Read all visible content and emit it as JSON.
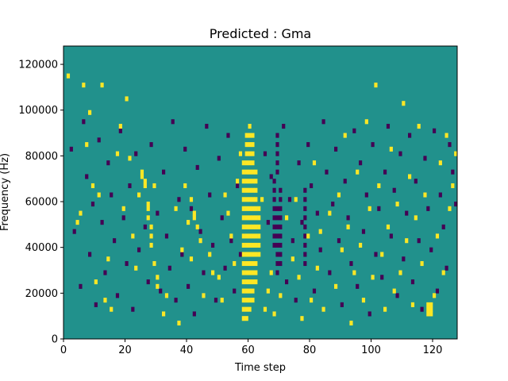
{
  "chart_data": {
    "type": "heatmap",
    "title": "Predicted : Gma",
    "xlabel": "Time step",
    "ylabel": "Frequency (Hz)",
    "xlim": [
      0,
      128
    ],
    "ylim": [
      0,
      128000
    ],
    "x_ticks": [
      0,
      20,
      40,
      60,
      80,
      100,
      120
    ],
    "y_ticks": [
      0,
      20000,
      40000,
      60000,
      80000,
      100000,
      120000
    ],
    "n_time_steps": 128,
    "n_freq_bins": 64,
    "colors": {
      "background": "#21918c",
      "high": "#fde725",
      "low": "#440154"
    },
    "yellow_cells": [
      [
        1,
        57
      ],
      [
        4,
        25
      ],
      [
        5,
        27
      ],
      [
        6,
        55
      ],
      [
        7,
        42
      ],
      [
        8,
        49
      ],
      [
        9,
        33
      ],
      [
        10,
        12
      ],
      [
        11,
        31
      ],
      [
        12,
        55
      ],
      [
        13,
        8
      ],
      [
        14,
        17
      ],
      [
        15,
        6
      ],
      [
        17,
        40
      ],
      [
        18,
        46
      ],
      [
        19,
        28
      ],
      [
        20,
        52
      ],
      [
        21,
        39
      ],
      [
        22,
        22
      ],
      [
        23,
        15
      ],
      [
        24,
        31
      ],
      [
        25,
        35
      ],
      [
        25,
        36
      ],
      [
        26,
        34
      ],
      [
        26,
        33
      ],
      [
        27,
        28
      ],
      [
        27,
        29
      ],
      [
        27,
        26
      ],
      [
        28,
        24
      ],
      [
        28,
        20
      ],
      [
        28,
        22
      ],
      [
        29,
        33
      ],
      [
        29,
        16
      ],
      [
        30,
        11
      ],
      [
        30,
        13
      ],
      [
        32,
        5
      ],
      [
        33,
        9
      ],
      [
        36,
        28
      ],
      [
        37,
        3
      ],
      [
        38,
        19
      ],
      [
        39,
        33
      ],
      [
        40,
        25
      ],
      [
        41,
        17
      ],
      [
        41,
        30
      ],
      [
        42,
        27
      ],
      [
        42,
        26
      ],
      [
        43,
        24
      ],
      [
        44,
        21
      ],
      [
        45,
        9
      ],
      [
        47,
        18
      ],
      [
        48,
        14
      ],
      [
        50,
        13
      ],
      [
        51,
        8
      ],
      [
        52,
        31
      ],
      [
        53,
        27
      ],
      [
        54,
        22
      ],
      [
        55,
        16
      ],
      [
        56,
        34
      ],
      [
        57,
        40
      ],
      [
        58,
        4
      ],
      [
        58,
        6
      ],
      [
        58,
        8
      ],
      [
        58,
        10
      ],
      [
        58,
        12
      ],
      [
        58,
        14
      ],
      [
        58,
        16
      ],
      [
        58,
        18
      ],
      [
        58,
        20
      ],
      [
        58,
        22
      ],
      [
        58,
        24
      ],
      [
        58,
        26
      ],
      [
        58,
        28
      ],
      [
        58,
        30
      ],
      [
        58,
        32
      ],
      [
        58,
        34
      ],
      [
        58,
        36
      ],
      [
        58,
        38
      ],
      [
        59,
        4
      ],
      [
        59,
        6
      ],
      [
        59,
        8
      ],
      [
        59,
        10
      ],
      [
        59,
        12
      ],
      [
        59,
        14
      ],
      [
        59,
        16
      ],
      [
        59,
        18
      ],
      [
        59,
        20
      ],
      [
        59,
        22
      ],
      [
        59,
        24
      ],
      [
        59,
        26
      ],
      [
        59,
        28
      ],
      [
        59,
        30
      ],
      [
        59,
        32
      ],
      [
        59,
        34
      ],
      [
        59,
        36
      ],
      [
        59,
        38
      ],
      [
        59,
        40
      ],
      [
        59,
        42
      ],
      [
        59,
        44
      ],
      [
        60,
        6
      ],
      [
        60,
        8
      ],
      [
        60,
        10
      ],
      [
        60,
        12
      ],
      [
        60,
        14
      ],
      [
        60,
        16
      ],
      [
        60,
        18
      ],
      [
        60,
        20
      ],
      [
        60,
        22
      ],
      [
        60,
        24
      ],
      [
        60,
        26
      ],
      [
        60,
        28
      ],
      [
        60,
        30
      ],
      [
        60,
        32
      ],
      [
        60,
        34
      ],
      [
        60,
        36
      ],
      [
        60,
        38
      ],
      [
        60,
        40
      ],
      [
        60,
        42
      ],
      [
        60,
        44
      ],
      [
        60,
        46
      ],
      [
        61,
        8
      ],
      [
        61,
        10
      ],
      [
        61,
        12
      ],
      [
        61,
        14
      ],
      [
        61,
        16
      ],
      [
        61,
        18
      ],
      [
        61,
        20
      ],
      [
        61,
        22
      ],
      [
        61,
        24
      ],
      [
        61,
        26
      ],
      [
        61,
        28
      ],
      [
        61,
        30
      ],
      [
        61,
        32
      ],
      [
        61,
        34
      ],
      [
        61,
        36
      ],
      [
        61,
        38
      ],
      [
        61,
        40
      ],
      [
        61,
        42
      ],
      [
        61,
        44
      ],
      [
        62,
        12
      ],
      [
        62,
        14
      ],
      [
        62,
        16
      ],
      [
        62,
        18
      ],
      [
        62,
        20
      ],
      [
        62,
        22
      ],
      [
        62,
        24
      ],
      [
        62,
        26
      ],
      [
        62,
        28
      ],
      [
        62,
        30
      ],
      [
        62,
        32
      ],
      [
        62,
        34
      ],
      [
        62,
        36
      ],
      [
        63,
        18
      ],
      [
        63,
        20
      ],
      [
        63,
        22
      ],
      [
        63,
        24
      ],
      [
        63,
        26
      ],
      [
        63,
        28
      ],
      [
        64,
        30
      ],
      [
        65,
        6
      ],
      [
        66,
        10
      ],
      [
        67,
        14
      ],
      [
        68,
        5
      ],
      [
        70,
        9
      ],
      [
        72,
        26
      ],
      [
        74,
        17
      ],
      [
        75,
        30
      ],
      [
        76,
        13
      ],
      [
        77,
        4
      ],
      [
        79,
        22
      ],
      [
        80,
        8
      ],
      [
        81,
        38
      ],
      [
        82,
        15
      ],
      [
        83,
        23
      ],
      [
        84,
        6
      ],
      [
        86,
        27
      ],
      [
        88,
        11
      ],
      [
        89,
        31
      ],
      [
        90,
        19
      ],
      [
        91,
        44
      ],
      [
        92,
        24
      ],
      [
        93,
        3
      ],
      [
        94,
        14
      ],
      [
        95,
        36
      ],
      [
        96,
        20
      ],
      [
        97,
        8
      ],
      [
        98,
        47
      ],
      [
        99,
        28
      ],
      [
        100,
        13
      ],
      [
        101,
        55
      ],
      [
        102,
        33
      ],
      [
        103,
        18
      ],
      [
        104,
        6
      ],
      [
        105,
        24
      ],
      [
        106,
        41
      ],
      [
        107,
        10
      ],
      [
        108,
        29
      ],
      [
        109,
        14
      ],
      [
        110,
        51
      ],
      [
        111,
        21
      ],
      [
        112,
        35
      ],
      [
        113,
        7
      ],
      [
        114,
        26
      ],
      [
        115,
        46
      ],
      [
        116,
        16
      ],
      [
        117,
        31
      ],
      [
        118,
        5
      ],
      [
        118,
        6
      ],
      [
        118,
        7
      ],
      [
        119,
        5
      ],
      [
        119,
        6
      ],
      [
        119,
        7
      ],
      [
        120,
        9
      ],
      [
        121,
        22
      ],
      [
        122,
        38
      ],
      [
        123,
        14
      ],
      [
        124,
        44
      ],
      [
        125,
        28
      ],
      [
        126,
        33
      ],
      [
        127,
        40
      ]
    ],
    "purple_cells": [
      [
        2,
        41
      ],
      [
        3,
        23
      ],
      [
        5,
        11
      ],
      [
        6,
        47
      ],
      [
        7,
        35
      ],
      [
        8,
        18
      ],
      [
        9,
        29
      ],
      [
        10,
        7
      ],
      [
        11,
        43
      ],
      [
        12,
        25
      ],
      [
        13,
        14
      ],
      [
        14,
        38
      ],
      [
        15,
        31
      ],
      [
        16,
        21
      ],
      [
        17,
        9
      ],
      [
        18,
        45
      ],
      [
        19,
        26
      ],
      [
        20,
        16
      ],
      [
        21,
        33
      ],
      [
        22,
        6
      ],
      [
        23,
        40
      ],
      [
        24,
        19
      ],
      [
        26,
        24
      ],
      [
        27,
        12
      ],
      [
        28,
        42
      ],
      [
        30,
        27
      ],
      [
        31,
        10
      ],
      [
        32,
        36
      ],
      [
        33,
        22
      ],
      [
        34,
        15
      ],
      [
        35,
        47
      ],
      [
        36,
        8
      ],
      [
        37,
        30
      ],
      [
        38,
        18
      ],
      [
        39,
        41
      ],
      [
        40,
        11
      ],
      [
        41,
        28
      ],
      [
        42,
        5
      ],
      [
        43,
        37
      ],
      [
        44,
        23
      ],
      [
        45,
        14
      ],
      [
        46,
        46
      ],
      [
        47,
        31
      ],
      [
        48,
        20
      ],
      [
        49,
        8
      ],
      [
        50,
        39
      ],
      [
        51,
        26
      ],
      [
        52,
        15
      ],
      [
        53,
        44
      ],
      [
        54,
        21
      ],
      [
        55,
        10
      ],
      [
        56,
        33
      ],
      [
        57,
        18
      ],
      [
        65,
        40
      ],
      [
        66,
        25
      ],
      [
        67,
        35
      ],
      [
        68,
        20
      ],
      [
        68,
        22
      ],
      [
        68,
        24
      ],
      [
        68,
        26
      ],
      [
        68,
        28
      ],
      [
        68,
        30
      ],
      [
        68,
        32
      ],
      [
        68,
        34
      ],
      [
        69,
        14
      ],
      [
        69,
        16
      ],
      [
        69,
        18
      ],
      [
        69,
        20
      ],
      [
        69,
        22
      ],
      [
        69,
        24
      ],
      [
        69,
        26
      ],
      [
        69,
        28
      ],
      [
        69,
        36
      ],
      [
        69,
        38
      ],
      [
        69,
        40
      ],
      [
        69,
        42
      ],
      [
        69,
        44
      ],
      [
        70,
        16
      ],
      [
        70,
        18
      ],
      [
        70,
        20
      ],
      [
        70,
        22
      ],
      [
        70,
        24
      ],
      [
        70,
        26
      ],
      [
        70,
        28
      ],
      [
        70,
        30
      ],
      [
        70,
        32
      ],
      [
        71,
        46
      ],
      [
        72,
        12
      ],
      [
        73,
        30
      ],
      [
        74,
        21
      ],
      [
        75,
        8
      ],
      [
        76,
        38
      ],
      [
        77,
        25
      ],
      [
        78,
        16
      ],
      [
        78,
        18
      ],
      [
        78,
        20
      ],
      [
        78,
        22
      ],
      [
        78,
        24
      ],
      [
        78,
        26
      ],
      [
        78,
        28
      ],
      [
        78,
        30
      ],
      [
        78,
        32
      ],
      [
        79,
        42
      ],
      [
        80,
        33
      ],
      [
        81,
        10
      ],
      [
        82,
        27
      ],
      [
        83,
        19
      ],
      [
        84,
        47
      ],
      [
        85,
        36
      ],
      [
        86,
        14
      ],
      [
        87,
        29
      ],
      [
        88,
        41
      ],
      [
        89,
        21
      ],
      [
        90,
        7
      ],
      [
        91,
        34
      ],
      [
        92,
        26
      ],
      [
        93,
        16
      ],
      [
        94,
        45
      ],
      [
        95,
        11
      ],
      [
        96,
        38
      ],
      [
        97,
        23
      ],
      [
        98,
        31
      ],
      [
        99,
        5
      ],
      [
        100,
        42
      ],
      [
        101,
        18
      ],
      [
        102,
        28
      ],
      [
        103,
        13
      ],
      [
        104,
        36
      ],
      [
        105,
        46
      ],
      [
        106,
        22
      ],
      [
        107,
        32
      ],
      [
        108,
        9
      ],
      [
        109,
        40
      ],
      [
        110,
        17
      ],
      [
        111,
        27
      ],
      [
        112,
        44
      ],
      [
        113,
        12
      ],
      [
        114,
        34
      ],
      [
        115,
        21
      ],
      [
        116,
        6
      ],
      [
        117,
        39
      ],
      [
        118,
        28
      ],
      [
        119,
        19
      ],
      [
        120,
        45
      ],
      [
        121,
        10
      ],
      [
        122,
        31
      ],
      [
        123,
        24
      ],
      [
        124,
        15
      ],
      [
        125,
        42
      ],
      [
        126,
        36
      ],
      [
        127,
        29
      ]
    ]
  }
}
